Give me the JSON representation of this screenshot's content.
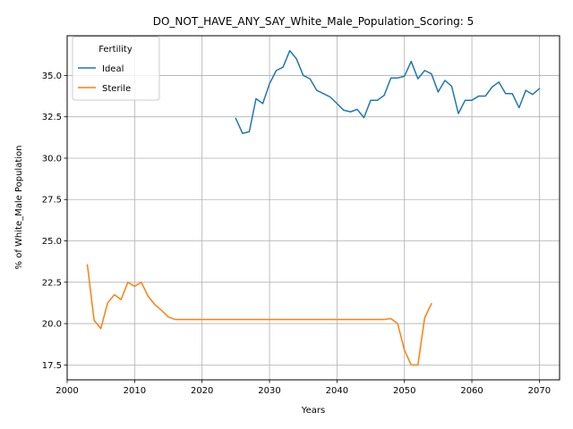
{
  "chart_data": {
    "type": "line",
    "title": "DO_NOT_HAVE_ANY_SAY_White_Male_Population_Scoring: 5",
    "xlabel": "Years",
    "ylabel": "% of White_Male Population",
    "xlim": [
      2000,
      2073
    ],
    "ylim": [
      16.6,
      37.4
    ],
    "xticks": [
      2000,
      2010,
      2020,
      2030,
      2040,
      2050,
      2060,
      2070
    ],
    "xtick_labels": [
      "2000",
      "2010",
      "2020",
      "2030",
      "2040",
      "2050",
      "2060",
      "2070"
    ],
    "yticks": [
      17.5,
      20.0,
      22.5,
      25.0,
      27.5,
      30.0,
      32.5,
      35.0
    ],
    "ytick_labels": [
      "17.5",
      "20.0",
      "22.5",
      "25.0",
      "27.5",
      "30.0",
      "32.5",
      "35.0"
    ],
    "grid": true,
    "legend": {
      "title": "Fertility",
      "position": "upper-left"
    },
    "series": [
      {
        "name": "Ideal",
        "color": "#1f77b4",
        "x": [
          2025,
          2026,
          2027,
          2028,
          2029,
          2030,
          2031,
          2032,
          2033,
          2034,
          2035,
          2036,
          2037,
          2038,
          2039,
          2040,
          2041,
          2042,
          2043,
          2044,
          2045,
          2046,
          2047,
          2048,
          2049,
          2050,
          2051,
          2052,
          2053,
          2054,
          2055,
          2056,
          2057,
          2058,
          2059,
          2060,
          2061,
          2062,
          2063,
          2064,
          2065,
          2066,
          2067,
          2068,
          2069,
          2070
        ],
        "y": [
          32.4,
          31.5,
          31.6,
          33.6,
          33.3,
          34.5,
          35.3,
          35.5,
          36.5,
          36.0,
          35.0,
          34.8,
          34.1,
          33.9,
          33.7,
          33.3,
          32.9,
          32.8,
          32.95,
          32.45,
          33.5,
          33.5,
          33.8,
          34.85,
          34.85,
          34.95,
          35.85,
          34.8,
          35.3,
          35.1,
          34.0,
          34.7,
          34.35,
          32.7,
          33.5,
          33.5,
          33.75,
          33.75,
          34.3,
          34.6,
          33.9,
          33.9,
          33.05,
          34.1,
          33.85,
          34.2
        ]
      },
      {
        "name": "Sterile",
        "color": "#ff7f0e",
        "x": [
          2003,
          2004,
          2005,
          2006,
          2007,
          2008,
          2009,
          2010,
          2011,
          2012,
          2013,
          2014,
          2015,
          2016,
          2017,
          2018,
          2019,
          2020,
          2021,
          2022,
          2023,
          2024,
          2025,
          2026,
          2027,
          2028,
          2029,
          2030,
          2031,
          2032,
          2033,
          2034,
          2035,
          2036,
          2037,
          2038,
          2039,
          2040,
          2041,
          2042,
          2043,
          2044,
          2045,
          2046,
          2047,
          2048,
          2049,
          2050,
          2051,
          2052,
          2053,
          2054
        ],
        "y": [
          23.55,
          20.2,
          19.7,
          21.25,
          21.75,
          21.45,
          22.5,
          22.25,
          22.5,
          21.65,
          21.15,
          20.8,
          20.4,
          20.25,
          20.25,
          20.25,
          20.25,
          20.25,
          20.25,
          20.25,
          20.25,
          20.25,
          20.25,
          20.25,
          20.25,
          20.25,
          20.25,
          20.25,
          20.25,
          20.25,
          20.25,
          20.25,
          20.25,
          20.25,
          20.25,
          20.25,
          20.25,
          20.25,
          20.25,
          20.25,
          20.25,
          20.25,
          20.25,
          20.25,
          20.25,
          20.3,
          20.0,
          18.4,
          17.5,
          17.5,
          20.35,
          21.2
        ]
      }
    ]
  }
}
